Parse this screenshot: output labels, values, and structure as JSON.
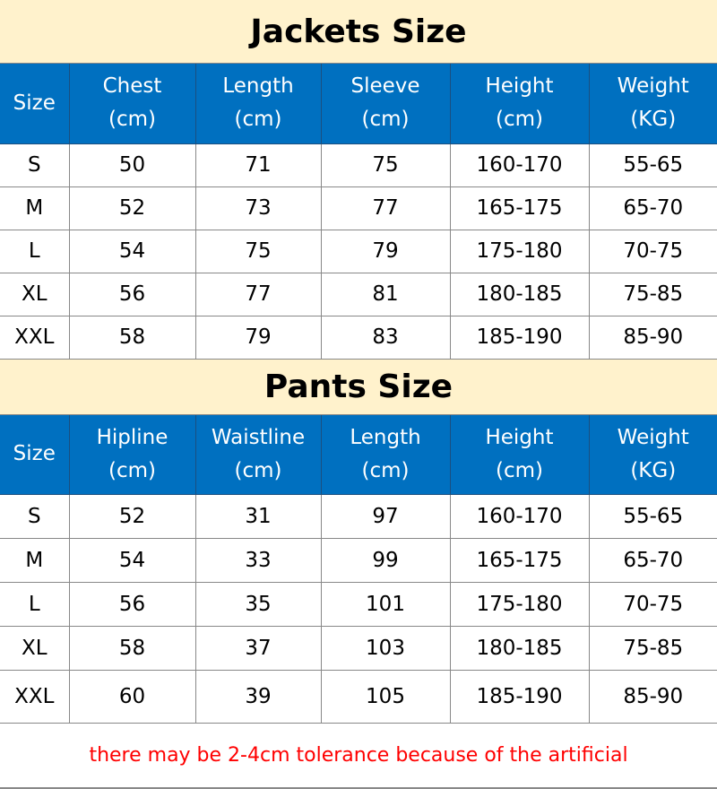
{
  "colors": {
    "title_bg": "#fff2cc",
    "header_bg": "#0070c0",
    "note": "#ff0000"
  },
  "jackets": {
    "title": "Jackets Size",
    "headers": [
      [
        "Size"
      ],
      [
        "Chest",
        "(cm)"
      ],
      [
        "Length",
        "(cm)"
      ],
      [
        "Sleeve",
        "(cm)"
      ],
      [
        "Height",
        "(cm)"
      ],
      [
        "Weight",
        "(KG)"
      ]
    ],
    "rows": [
      [
        "S",
        "50",
        "71",
        "75",
        "160-170",
        "55-65"
      ],
      [
        "M",
        "52",
        "73",
        "77",
        "165-175",
        "65-70"
      ],
      [
        "L",
        "54",
        "75",
        "79",
        "175-180",
        "70-75"
      ],
      [
        "XL",
        "56",
        "77",
        "81",
        "180-185",
        "75-85"
      ],
      [
        "XXL",
        "58",
        "79",
        "83",
        "185-190",
        "85-90"
      ]
    ]
  },
  "pants": {
    "title": "Pants Size",
    "headers": [
      [
        "Size"
      ],
      [
        "Hipline",
        "(cm)"
      ],
      [
        "Waistline",
        "(cm)"
      ],
      [
        "Length",
        "(cm)"
      ],
      [
        "Height",
        "(cm)"
      ],
      [
        "Weight",
        "(KG)"
      ]
    ],
    "rows": [
      [
        "S",
        "52",
        "31",
        "97",
        "160-170",
        "55-65"
      ],
      [
        "M",
        "54",
        "33",
        "99",
        "165-175",
        "65-70"
      ],
      [
        "L",
        "56",
        "35",
        "101",
        "175-180",
        "70-75"
      ],
      [
        "XL",
        "58",
        "37",
        "103",
        "180-185",
        "75-85"
      ],
      [
        "XXL",
        "60",
        "39",
        "105",
        "185-190",
        "85-90"
      ]
    ]
  },
  "note": "there may be 2-4cm tolerance because of the artificial"
}
